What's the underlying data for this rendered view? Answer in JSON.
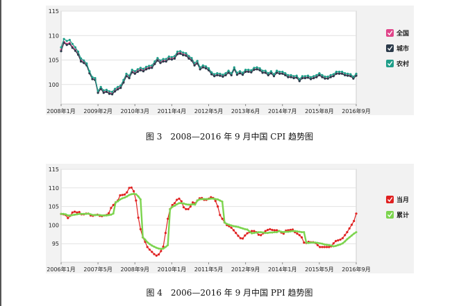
{
  "figures": [
    {
      "caption": "图 3　2008—2016 年 9 月中国 CPI 趋势图"
    },
    {
      "caption": "图 4　2006—2016 年 9 月中国 PPI 趋势图"
    }
  ],
  "chart_data": [
    {
      "type": "line",
      "title": "",
      "xlabel": "",
      "ylabel": "",
      "ylim": [
        96,
        115
      ],
      "yticks": [
        100,
        105,
        110,
        115
      ],
      "xticks": [
        "2008年1月",
        "2009年2月",
        "2010年3月",
        "2011年4月",
        "2012年5月",
        "2013年6月",
        "2014年7月",
        "2015年8月",
        "2016年9月"
      ],
      "grid": true,
      "legend": "right",
      "x_start": "2008-01",
      "series": [
        {
          "name": "全国",
          "color": "#e0458a",
          "values": [
            107.1,
            108.7,
            108.3,
            108.5,
            107.7,
            107.1,
            106.3,
            104.9,
            104.6,
            104,
            102.4,
            101.2,
            101,
            98.4,
            99.2,
            98.5,
            98.6,
            98.3,
            98.2,
            98.8,
            99.2,
            99.5,
            100.6,
            101.9,
            101.5,
            102.7,
            102.4,
            102.8,
            103.1,
            102.9,
            103.3,
            103.5,
            103.6,
            104.4,
            105.1,
            104.6,
            104.9,
            104.9,
            105.4,
            105.3,
            105.5,
            106.4,
            106.5,
            106.2,
            106.1,
            105.5,
            105.1,
            104.1,
            104.5,
            103.2,
            103.6,
            103.4,
            103,
            102.2,
            101.8,
            102,
            101.9,
            101.7,
            102,
            102.5,
            102,
            103.2,
            102.1,
            102.4,
            102.1,
            102.7,
            102.7,
            102.6,
            103.1,
            103.2,
            103,
            102.5,
            102.5,
            102,
            102.4,
            101.8,
            102.5,
            102.3,
            102.3,
            102,
            101.6,
            101.6,
            101.4,
            101.5,
            100.8,
            101.4,
            101.4,
            101.5,
            101.2,
            101.4,
            101.6,
            102,
            101.6,
            101.3,
            101.3,
            101.6,
            101.8,
            102.3,
            102.3,
            102.3,
            102,
            101.9,
            101.8,
            101.3,
            101.9
          ]
        },
        {
          "name": "城市",
          "color": "#2b3a4a",
          "values": [
            106.8,
            108.5,
            108.1,
            108.3,
            107.5,
            106.9,
            106.1,
            104.7,
            104.4,
            103.9,
            102.3,
            101.1,
            100.9,
            98.3,
            99.1,
            98.3,
            98.5,
            98.1,
            98,
            98.6,
            99,
            99.3,
            100.4,
            101.7,
            101.3,
            102.5,
            102.2,
            102.6,
            102.9,
            102.7,
            103.1,
            103.3,
            103.4,
            104.2,
            104.9,
            104.4,
            104.7,
            104.7,
            105.2,
            105.1,
            105.3,
            106.2,
            106.3,
            106,
            105.9,
            105.3,
            104.9,
            103.9,
            104.3,
            103.1,
            103.5,
            103.3,
            102.9,
            102.1,
            101.7,
            101.9,
            101.8,
            101.6,
            101.9,
            102.4,
            101.9,
            103.1,
            102,
            102.3,
            102,
            102.6,
            102.6,
            102.5,
            103,
            103.1,
            102.9,
            102.4,
            102.4,
            101.9,
            102.3,
            101.7,
            102.4,
            102.2,
            102.2,
            101.9,
            101.5,
            101.5,
            101.3,
            101.4,
            100.7,
            101.3,
            101.3,
            101.4,
            101.1,
            101.3,
            101.5,
            101.9,
            101.5,
            101.2,
            101.2,
            101.5,
            101.7,
            102.2,
            102.2,
            102.2,
            101.9,
            101.8,
            101.7,
            101.2,
            101.8
          ]
        },
        {
          "name": "农村",
          "color": "#1f9e89",
          "values": [
            107.6,
            109.3,
            108.9,
            109.1,
            108.3,
            107.6,
            106.7,
            105.3,
            104.9,
            104.3,
            102.7,
            101.5,
            101.3,
            98.7,
            99.5,
            98.8,
            98.9,
            98.6,
            98.5,
            99.1,
            99.5,
            99.8,
            100.9,
            102.2,
            101.8,
            103,
            102.7,
            103.1,
            103.4,
            103.2,
            103.6,
            103.8,
            103.9,
            104.7,
            105.4,
            104.9,
            105.2,
            105.2,
            105.7,
            105.6,
            105.8,
            106.7,
            106.8,
            106.5,
            106.4,
            105.8,
            105.4,
            104.4,
            104.8,
            103.5,
            103.9,
            103.7,
            103.3,
            102.5,
            102.1,
            102.3,
            102.2,
            102,
            102.3,
            102.8,
            102.3,
            103.5,
            102.4,
            102.7,
            102.4,
            103,
            103,
            102.9,
            103.4,
            103.5,
            103.3,
            102.8,
            102.8,
            102.3,
            102.7,
            102.1,
            102.8,
            102.6,
            102.6,
            102.3,
            101.9,
            101.9,
            101.7,
            101.8,
            101.1,
            101.7,
            101.7,
            101.8,
            101.5,
            101.7,
            101.9,
            102.3,
            101.9,
            101.6,
            101.6,
            101.9,
            102.1,
            102.6,
            102.6,
            102.6,
            102.3,
            102.2,
            102.1,
            101.6,
            102.2
          ]
        }
      ]
    },
    {
      "type": "line",
      "title": "",
      "xlabel": "",
      "ylabel": "",
      "ylim": [
        90,
        115
      ],
      "yticks": [
        95,
        100,
        105,
        110,
        115
      ],
      "xticks": [
        "2006年1月",
        "2007年5月",
        "2008年9月",
        "2010年1月",
        "2011年5月",
        "2012年9月",
        "2014年1月",
        "2015年5月",
        "2016年9月"
      ],
      "grid": true,
      "legend": "right",
      "x_start": "2006-01",
      "series": [
        {
          "name": "当月",
          "color": "#e02020",
          "values": [
            103,
            102.9,
            102.7,
            101.9,
            102.5,
            103.4,
            103.6,
            103.4,
            103.5,
            102.9,
            102.9,
            103.1,
            103.1,
            102.6,
            102.5,
            102.7,
            102.8,
            102.5,
            102.4,
            102.6,
            102.7,
            103.2,
            104.6,
            105.4,
            106.1,
            106.6,
            108,
            108.1,
            108.2,
            108.8,
            110,
            110.1,
            109.1,
            106.6,
            102,
            98.9,
            96.7,
            95.5,
            94.1,
            93.4,
            92.8,
            92.2,
            91.8,
            92.1,
            93,
            94.2,
            97.9,
            101.7,
            104.3,
            105.4,
            105.9,
            106.8,
            107.1,
            106.4,
            104.8,
            104.3,
            104.3,
            105,
            106.1,
            105.9,
            106.6,
            107.2,
            107.3,
            106.8,
            106.8,
            107.1,
            107.5,
            107.3,
            106.5,
            105,
            102.7,
            101.7,
            100.7,
            100,
            99.7,
            99.3,
            98.6,
            97.9,
            97.1,
            96.5,
            96.4,
            97.2,
            97.8,
            98.1,
            98.4,
            98.4,
            98.1,
            97.4,
            97.3,
            97.8,
            98.4,
            98.7,
            98.9,
            98.7,
            98.6,
            98.6,
            98.4,
            98.0,
            97.7,
            98.5,
            98.6,
            98.7,
            98.8,
            98.1,
            97.7,
            97.3,
            96.7,
            95.3,
            95.2,
            95.5,
            95.4,
            95.4,
            95.2,
            94.6,
            94.1,
            94.1,
            94.1,
            94.1,
            94.1,
            94.3,
            95.1,
            95.7,
            95.9,
            96.1,
            96.5,
            97.3,
            98.1,
            99.1,
            100.1,
            101.1,
            103.1
          ]
        },
        {
          "name": "累计",
          "color": "#7cd44e",
          "values": [
            103,
            103,
            102.9,
            102.6,
            102.6,
            102.7,
            102.8,
            102.9,
            103,
            103,
            103,
            103,
            103.1,
            102.9,
            102.7,
            102.7,
            102.7,
            102.7,
            102.6,
            102.6,
            102.6,
            102.7,
            102.8,
            103.1,
            106.1,
            106.4,
            106.9,
            107.2,
            107.4,
            107.7,
            108.1,
            108.3,
            108.4,
            108.3,
            107.7,
            106.9,
            96.7,
            96.1,
            95.4,
            94.9,
            94.5,
            94.2,
            93.9,
            93.7,
            93.6,
            93.7,
            94.1,
            94.6,
            104.3,
            104.9,
            105.2,
            105.6,
            105.9,
            105.9,
            105.8,
            105.6,
            105.5,
            105.5,
            105.6,
            105.5,
            106.6,
            106.9,
            107,
            107,
            107,
            107,
            107.1,
            107.1,
            107,
            106.9,
            106.6,
            106.3,
            100.7,
            100.3,
            100.1,
            99.9,
            99.7,
            99.6,
            99.5,
            99.3,
            99.1,
            98.9,
            98.8,
            98.3,
            97.8,
            97.9,
            98,
            98.1,
            98.1,
            98,
            97.9,
            97.9,
            98,
            98,
            98.1,
            98.1,
            98.4,
            98.2,
            98.1,
            98.2,
            98.2,
            98.3,
            98.4,
            98.4,
            98.3,
            98.2,
            98.1,
            98.1,
            95.3,
            95.2,
            95.3,
            95.3,
            95.3,
            95.2,
            95.1,
            95,
            94.8,
            94.7,
            94.6,
            94.5,
            94.3,
            94.4,
            94.6,
            94.8,
            95.1,
            95.6,
            96.2,
            96.7,
            97.2,
            97.7,
            98.1
          ]
        }
      ]
    }
  ]
}
